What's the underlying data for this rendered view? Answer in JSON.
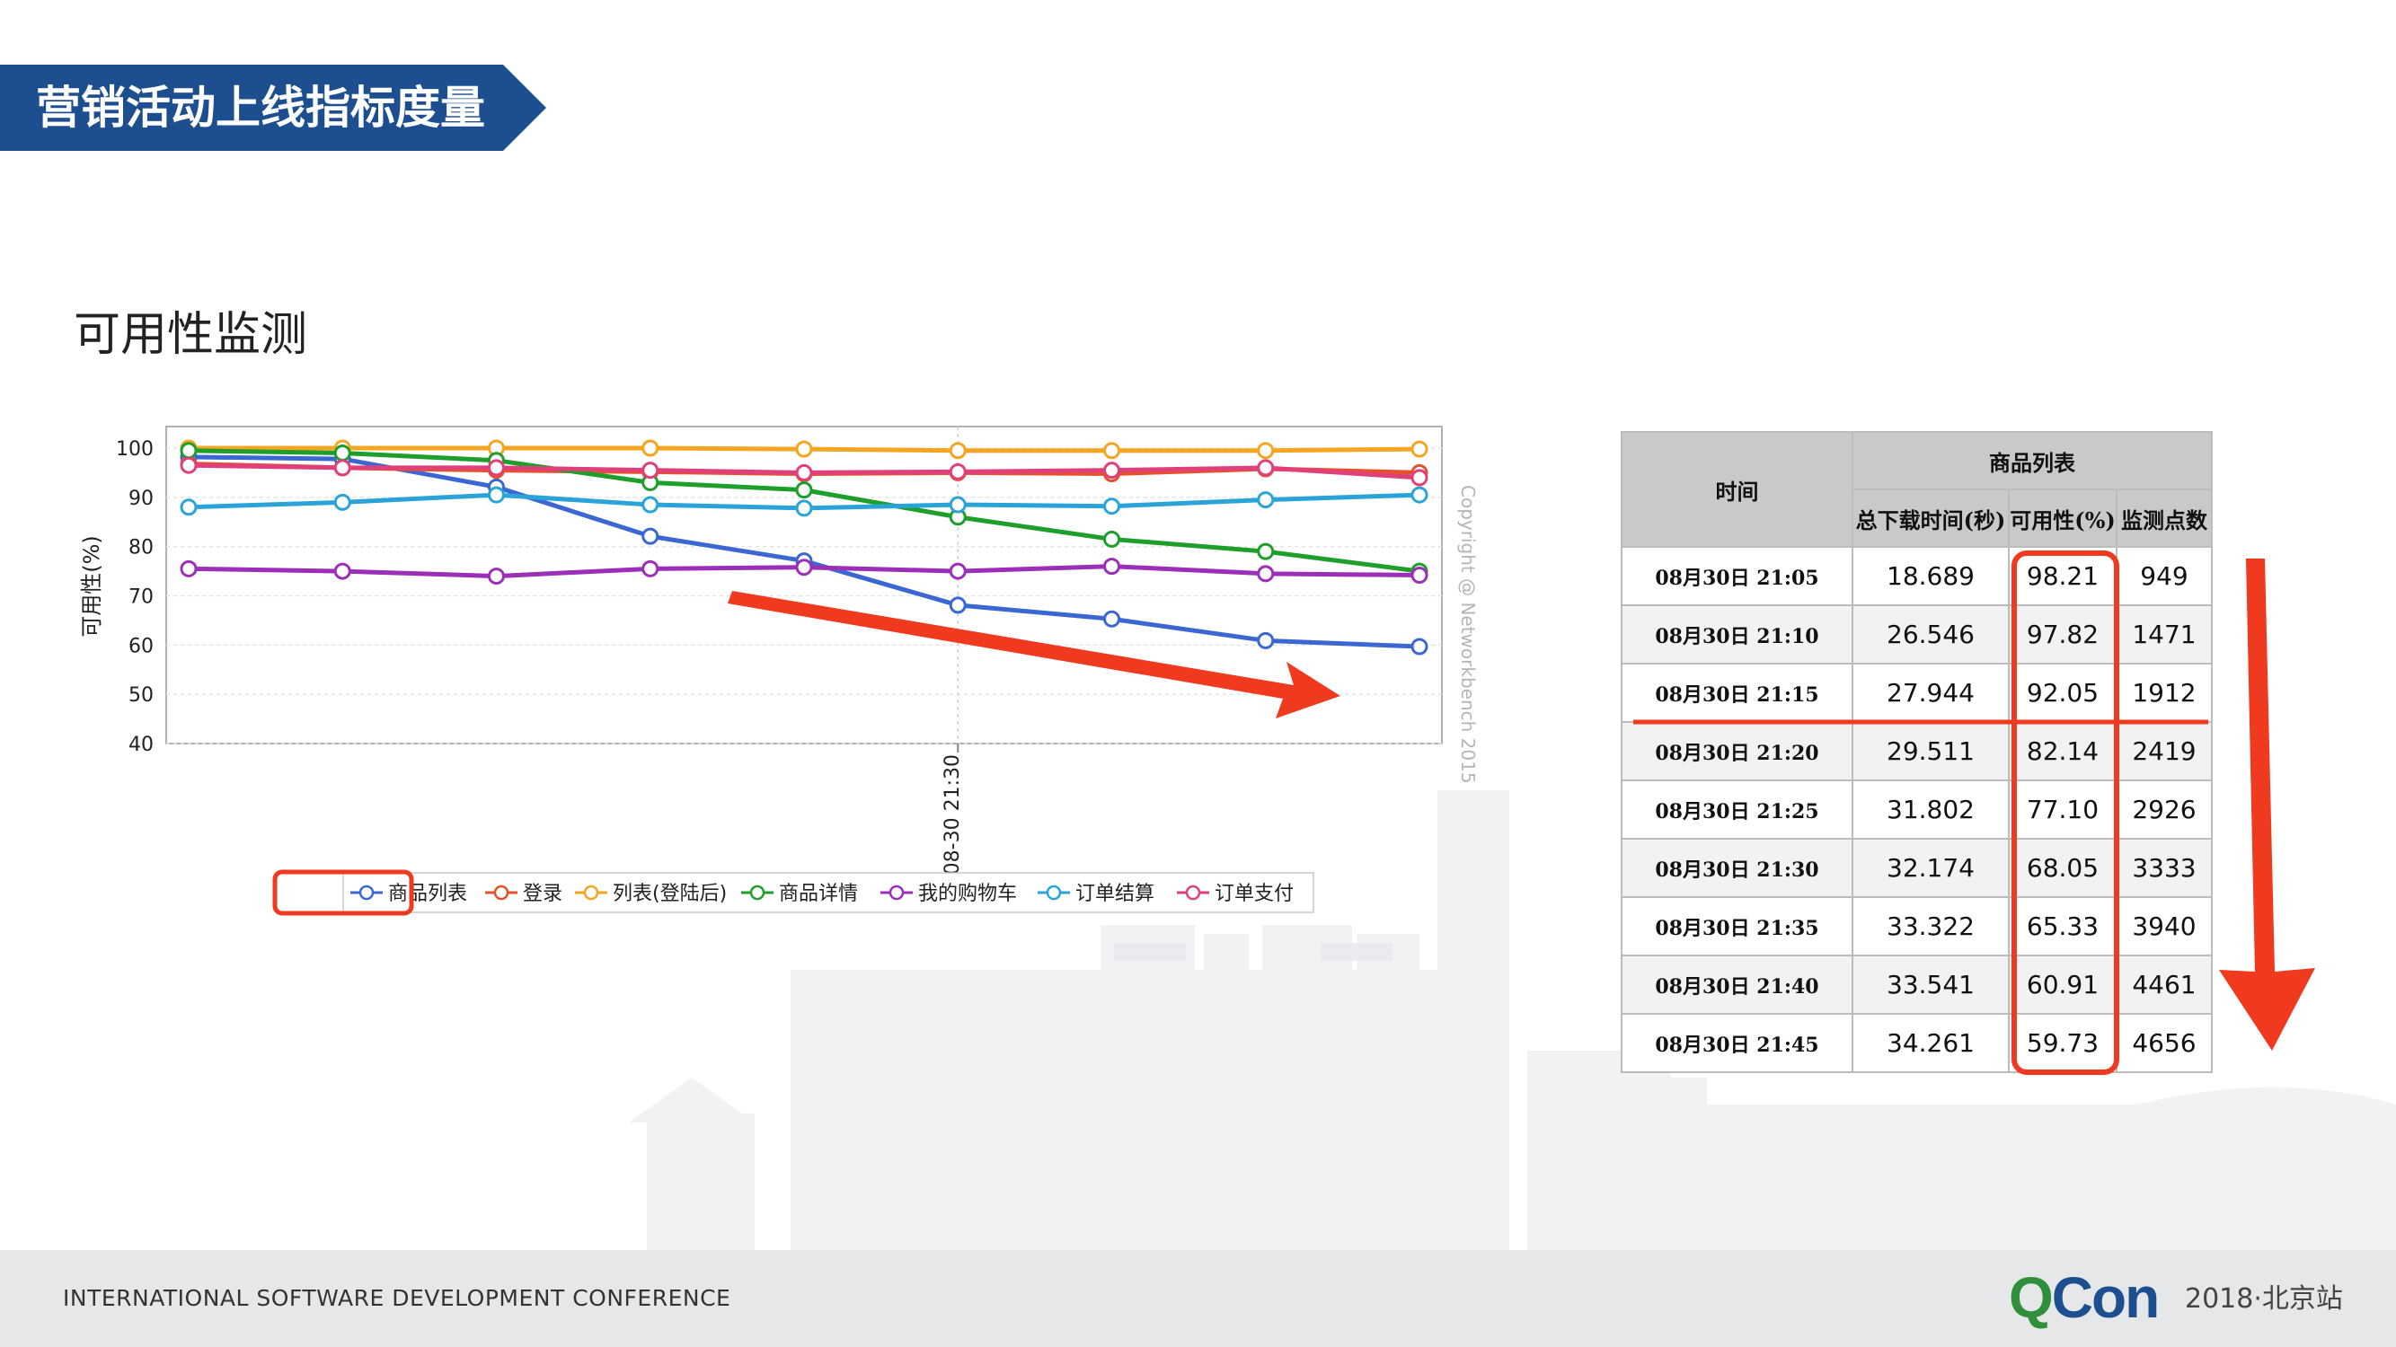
{
  "header": {
    "title": "营销活动上线指标度量",
    "banner_color": "#1d4e8f"
  },
  "section": {
    "subtitle": "可用性监测"
  },
  "chart_data": {
    "type": "line",
    "ylabel": "可用性(%)",
    "ylim": [
      40,
      100
    ],
    "yticks": [
      100,
      90,
      80,
      70,
      60,
      50,
      40
    ],
    "x_label": "08-30 21:30",
    "x_points": 9,
    "watermark": "Copyright @ Networkbench 2015",
    "grid": true,
    "legend_position": "bottom",
    "series": [
      {
        "name": "商品列表",
        "color": "#3a67d1",
        "values": [
          98.2,
          97.8,
          92.1,
          82.1,
          77.1,
          68.1,
          65.3,
          60.9,
          59.7
        ],
        "highlighted": true
      },
      {
        "name": "登录",
        "color": "#e8502b",
        "values": [
          96.8,
          96.0,
          95.5,
          95.2,
          94.8,
          95.0,
          94.8,
          95.8,
          95.0
        ]
      },
      {
        "name": "列表(登陆后)",
        "color": "#f4a622",
        "values": [
          100,
          100,
          100,
          100,
          99.8,
          99.5,
          99.5,
          99.5,
          99.8
        ]
      },
      {
        "name": "商品详情",
        "color": "#1e9e2b",
        "values": [
          99.5,
          99.0,
          97.5,
          93.0,
          91.5,
          86.0,
          81.5,
          79.0,
          75.0
        ]
      },
      {
        "name": "我的购物车",
        "color": "#9b2fb8",
        "values": [
          75.5,
          75.0,
          74.0,
          75.5,
          75.8,
          75.0,
          76.0,
          74.5,
          74.2
        ]
      },
      {
        "name": "订单结算",
        "color": "#2aa4d8",
        "values": [
          88.0,
          89.0,
          90.5,
          88.5,
          87.8,
          88.5,
          88.2,
          89.5,
          90.5
        ]
      },
      {
        "name": "订单支付",
        "color": "#e0407a",
        "values": [
          96.5,
          96.0,
          96.0,
          95.5,
          95.0,
          95.2,
          95.5,
          96.0,
          94.0
        ]
      }
    ]
  },
  "table": {
    "header_time": "时间",
    "header_group": "商品列表",
    "columns": [
      "总下载时间(秒)",
      "可用性(%)",
      "监测点数"
    ],
    "rows": [
      {
        "time": "08月30日 21:05",
        "download": "18.689",
        "availability": "98.21",
        "points": "949"
      },
      {
        "time": "08月30日 21:10",
        "download": "26.546",
        "availability": "97.82",
        "points": "1471"
      },
      {
        "time": "08月30日 21:15",
        "download": "27.944",
        "availability": "92.05",
        "points": "1912"
      },
      {
        "time": "08月30日 21:20",
        "download": "29.511",
        "availability": "82.14",
        "points": "2419"
      },
      {
        "time": "08月30日 21:25",
        "download": "31.802",
        "availability": "77.10",
        "points": "2926"
      },
      {
        "time": "08月30日 21:30",
        "download": "32.174",
        "availability": "68.05",
        "points": "3333"
      },
      {
        "time": "08月30日 21:35",
        "download": "33.322",
        "availability": "65.33",
        "points": "3940"
      },
      {
        "time": "08月30日 21:40",
        "download": "33.541",
        "availability": "60.91",
        "points": "4461"
      },
      {
        "time": "08月30日 21:45",
        "download": "34.261",
        "availability": "59.73",
        "points": "4656"
      }
    ]
  },
  "annotation_color": "#f03a1f",
  "footer": {
    "conference": "INTERNATIONAL SOFTWARE DEVELOPMENT CONFERENCE",
    "logo_q": "Q",
    "logo_con": "Con",
    "event": "2018·北京站"
  }
}
